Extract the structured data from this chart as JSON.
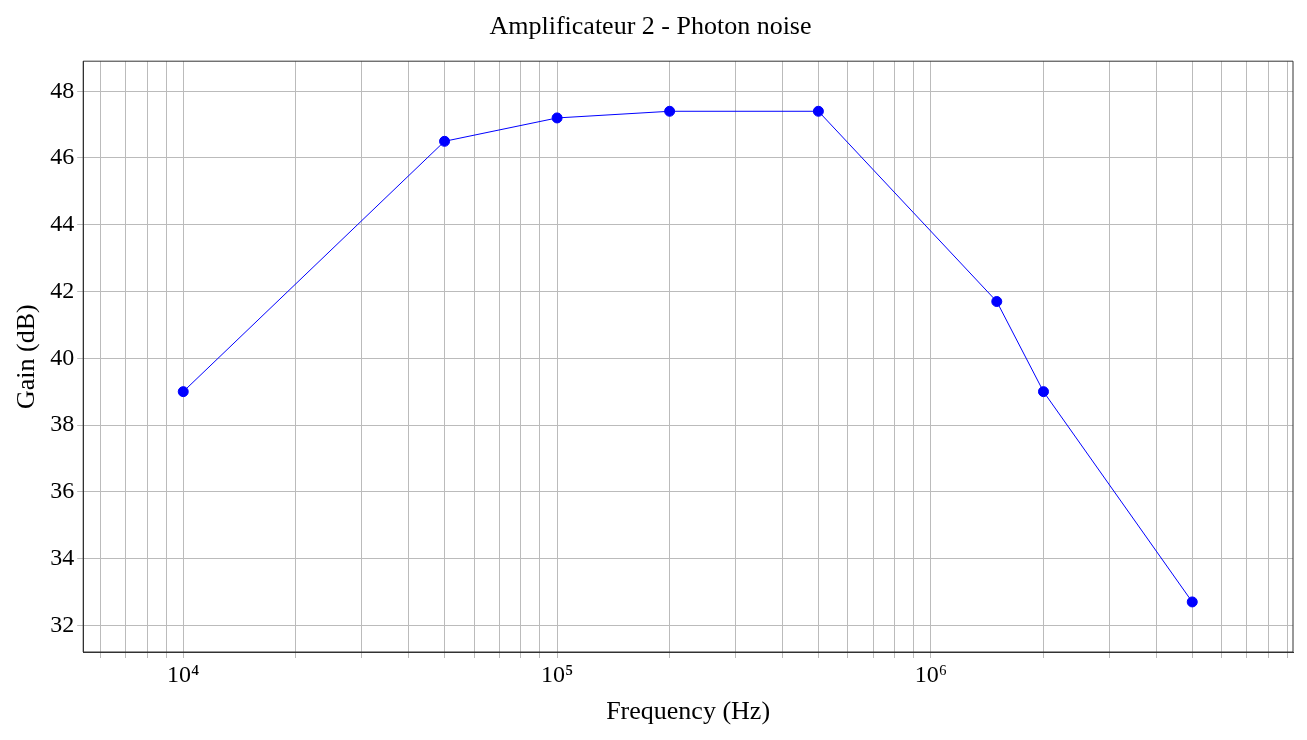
{
  "chart_data": {
    "type": "line",
    "title": "Amplificateur 2 - Photon noise",
    "xlabel": "Frequency (Hz)",
    "ylabel": "Gain (dB)",
    "x": [
      10000,
      50000,
      100000,
      200000,
      500000,
      1500000,
      2000000,
      5000000
    ],
    "series": [
      {
        "color": "#0000ff",
        "values": [
          39,
          46.5,
          47.2,
          47.4,
          47.4,
          41.7,
          39,
          32.7
        ]
      }
    ],
    "log": "x",
    "xlim": [
      5400,
      9300000
    ],
    "ylim": [
      31.2,
      48.9
    ],
    "xticks": [
      {
        "value": 6000,
        "label": null
      },
      {
        "value": 7000,
        "label": null
      },
      {
        "value": 8000,
        "label": null
      },
      {
        "value": 9000,
        "label": null
      },
      {
        "value": 10000,
        "label": "10⁴"
      },
      {
        "value": 20000,
        "label": null
      },
      {
        "value": 30000,
        "label": null
      },
      {
        "value": 40000,
        "label": null
      },
      {
        "value": 50000,
        "label": null
      },
      {
        "value": 60000,
        "label": null
      },
      {
        "value": 70000,
        "label": null
      },
      {
        "value": 80000,
        "label": null
      },
      {
        "value": 90000,
        "label": null
      },
      {
        "value": 100000,
        "label": "10⁵"
      },
      {
        "value": 200000,
        "label": null
      },
      {
        "value": 300000,
        "label": null
      },
      {
        "value": 400000,
        "label": null
      },
      {
        "value": 500000,
        "label": null
      },
      {
        "value": 600000,
        "label": null
      },
      {
        "value": 700000,
        "label": null
      },
      {
        "value": 800000,
        "label": null
      },
      {
        "value": 900000,
        "label": null
      },
      {
        "value": 1000000,
        "label": "10⁶"
      },
      {
        "value": 2000000,
        "label": null
      },
      {
        "value": 3000000,
        "label": null
      },
      {
        "value": 4000000,
        "label": null
      },
      {
        "value": 5000000,
        "label": null
      },
      {
        "value": 6000000,
        "label": null
      },
      {
        "value": 7000000,
        "label": null
      },
      {
        "value": 8000000,
        "label": null
      },
      {
        "value": 9000000,
        "label": null
      }
    ],
    "yticks": [
      32,
      34,
      36,
      38,
      40,
      42,
      44,
      46,
      48
    ],
    "grid": true,
    "legend": false,
    "marker": "circle",
    "line_style": "solid"
  }
}
